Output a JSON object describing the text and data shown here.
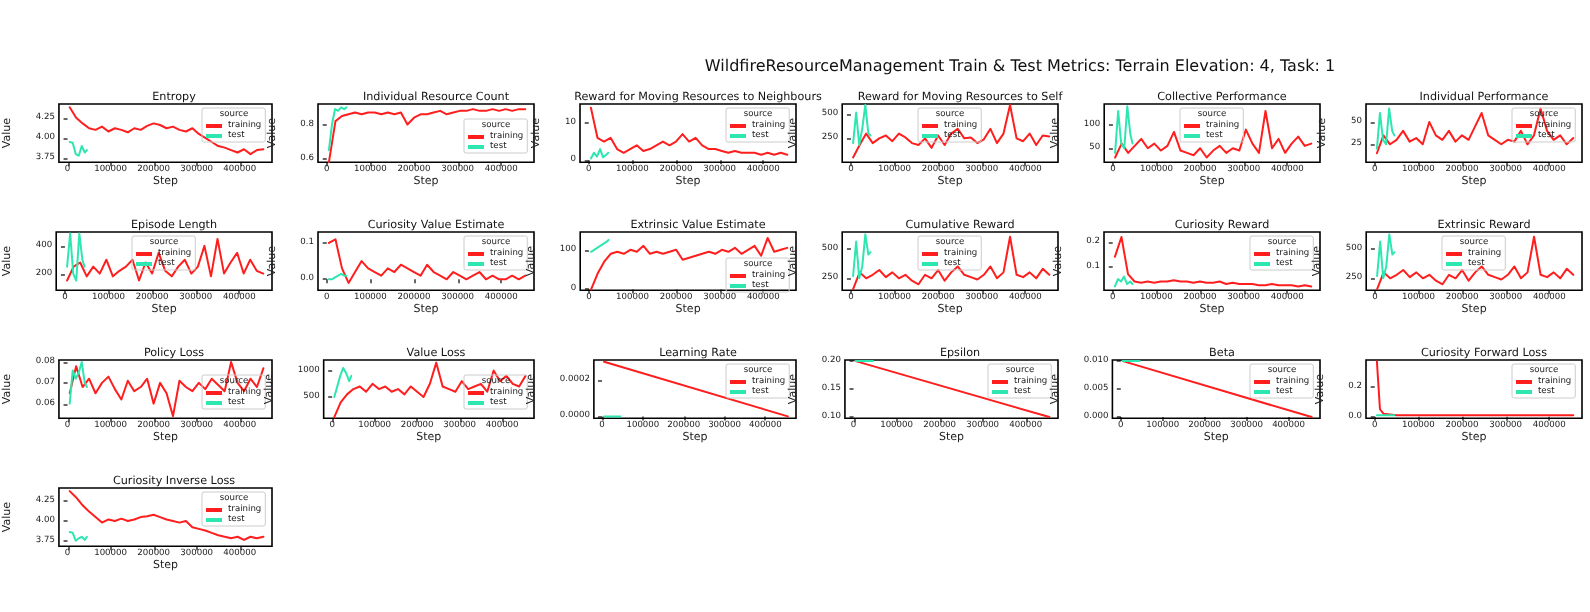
{
  "chart_data": [
    {
      "type": "other",
      "title": "WildfireResourceManagement Train & Test Metrics: Terrain Elevation: 4, Task: 1"
    },
    {
      "type": "line",
      "title": "Entropy",
      "xlabel": "Step",
      "ylabel": "Value",
      "legend_title": "source",
      "legend": "top right",
      "xlim": [
        -20000,
        475000
      ],
      "xticks": [
        0,
        100000,
        200000,
        300000,
        400000
      ],
      "ylim": [
        3.7,
        4.42
      ],
      "yticks": [
        {
          "value": 3.75,
          "label": "3.75"
        },
        {
          "value": 4,
          "label": "4.00"
        },
        {
          "value": 4.25,
          "label": "4.25"
        }
      ],
      "x": [
        5000,
        20000,
        35000,
        50000,
        65000,
        80000,
        95000,
        110000,
        125000,
        140000,
        155000,
        170000,
        185000,
        200000,
        215000,
        230000,
        245000,
        260000,
        275000,
        290000,
        305000,
        320000,
        335000,
        350000,
        365000,
        380000,
        395000,
        410000,
        425000,
        440000,
        455000
      ],
      "series": [
        {
          "name": "training",
          "color": "#ff1e1e",
          "values": [
            4.38,
            4.25,
            4.18,
            4.12,
            4.1,
            4.14,
            4.08,
            4.12,
            4.1,
            4.07,
            4.12,
            4.1,
            4.15,
            4.18,
            4.16,
            4.12,
            4.14,
            4.1,
            4.08,
            4.12,
            4.05,
            4.0,
            3.95,
            3.9,
            3.88,
            3.85,
            3.82,
            3.86,
            3.8,
            3.85,
            3.86
          ]
        },
        {
          "name": "test",
          "color": "#2de6b0",
          "x": [
            5000,
            12000,
            19000,
            26000,
            33000,
            40000,
            45000
          ],
          "values": [
            3.95,
            3.94,
            3.8,
            3.78,
            3.9,
            3.82,
            3.85
          ]
        }
      ]
    },
    {
      "type": "line",
      "title": "Individual Resource Count",
      "xlabel": "Step",
      "ylabel": "Value",
      "legend_title": "source",
      "legend": "center right",
      "xlim": [
        -20000,
        475000
      ],
      "xticks": [
        0,
        100000,
        200000,
        300000,
        400000
      ],
      "ylim": [
        0.58,
        0.92
      ],
      "yticks": [
        0.6,
        0.8
      ],
      "x": [
        5000,
        20000,
        35000,
        50000,
        65000,
        80000,
        95000,
        110000,
        125000,
        140000,
        155000,
        170000,
        185000,
        200000,
        215000,
        230000,
        245000,
        260000,
        275000,
        290000,
        305000,
        320000,
        335000,
        350000,
        365000,
        380000,
        395000,
        410000,
        425000,
        440000,
        455000
      ],
      "series": [
        {
          "name": "training",
          "color": "#ff1e1e",
          "values": [
            0.58,
            0.82,
            0.85,
            0.86,
            0.87,
            0.86,
            0.87,
            0.87,
            0.86,
            0.87,
            0.86,
            0.87,
            0.8,
            0.84,
            0.86,
            0.86,
            0.87,
            0.88,
            0.86,
            0.87,
            0.88,
            0.88,
            0.89,
            0.88,
            0.88,
            0.89,
            0.88,
            0.89,
            0.88,
            0.89,
            0.89
          ]
        },
        {
          "name": "test",
          "color": "#2de6b0",
          "x": [
            5000,
            12000,
            19000,
            26000,
            33000,
            40000,
            45000
          ],
          "values": [
            0.65,
            0.8,
            0.89,
            0.88,
            0.9,
            0.89,
            0.9
          ]
        }
      ]
    },
    {
      "type": "line",
      "title": "Reward for Moving Resources to Neighbours",
      "xlabel": "Step",
      "ylabel": "Value",
      "legend_title": "source",
      "legend": "top right",
      "xlim": [
        -20000,
        475000
      ],
      "xticks": [
        0,
        100000,
        200000,
        300000,
        400000
      ],
      "ylim": [
        -0.5,
        15
      ],
      "yticks": [
        0,
        10
      ],
      "x": [
        5000,
        20000,
        35000,
        50000,
        65000,
        80000,
        95000,
        110000,
        125000,
        140000,
        155000,
        170000,
        185000,
        200000,
        215000,
        230000,
        245000,
        260000,
        275000,
        290000,
        305000,
        320000,
        335000,
        350000,
        365000,
        380000,
        395000,
        410000,
        425000,
        440000,
        455000
      ],
      "series": [
        {
          "name": "training",
          "color": "#ff1e1e",
          "values": [
            14,
            6,
            5,
            6,
            3,
            2,
            3,
            4,
            2.5,
            3,
            4,
            5,
            4,
            5,
            7,
            5,
            6,
            4,
            3,
            3,
            2.5,
            2,
            2.5,
            2,
            2,
            2,
            1.5,
            2,
            1.5,
            2,
            1.5
          ]
        },
        {
          "name": "test",
          "color": "#2de6b0",
          "x": [
            5000,
            12000,
            19000,
            26000,
            33000,
            40000,
            45000
          ],
          "values": [
            0.5,
            2,
            1,
            3,
            0.8,
            1.5,
            2
          ]
        }
      ]
    },
    {
      "type": "line",
      "title": "Reward for Moving Resources to Self",
      "xlabel": "Step",
      "ylabel": "Value",
      "legend_title": "source",
      "legend": "top",
      "xlim": [
        -20000,
        475000
      ],
      "xticks": [
        0,
        100000,
        200000,
        300000,
        400000
      ],
      "ylim": [
        0,
        610
      ],
      "yticks": [
        250,
        500
      ],
      "x": [
        5000,
        20000,
        35000,
        50000,
        65000,
        80000,
        95000,
        110000,
        125000,
        140000,
        155000,
        170000,
        185000,
        200000,
        215000,
        230000,
        245000,
        260000,
        275000,
        290000,
        305000,
        320000,
        335000,
        350000,
        365000,
        380000,
        395000,
        410000,
        425000,
        440000,
        455000
      ],
      "series": [
        {
          "name": "training",
          "color": "#ff1e1e",
          "values": [
            50,
            180,
            300,
            200,
            250,
            280,
            220,
            300,
            260,
            200,
            180,
            250,
            150,
            280,
            180,
            300,
            350,
            250,
            260,
            200,
            240,
            350,
            200,
            300,
            600,
            250,
            220,
            300,
            180,
            280,
            270
          ]
        },
        {
          "name": "test",
          "color": "#2de6b0",
          "x": [
            5000,
            12000,
            19000,
            26000,
            33000,
            40000,
            45000
          ],
          "values": [
            200,
            520,
            180,
            350,
            600,
            300,
            280
          ]
        }
      ]
    },
    {
      "type": "line",
      "title": "Collective Performance",
      "xlabel": "Step",
      "ylabel": "Value",
      "legend_title": "source",
      "legend": "top",
      "xlim": [
        -20000,
        475000
      ],
      "xticks": [
        0,
        100000,
        200000,
        300000,
        400000
      ],
      "ylim": [
        20,
        145
      ],
      "yticks": [
        50,
        100
      ],
      "x": [
        5000,
        20000,
        35000,
        50000,
        65000,
        80000,
        95000,
        110000,
        125000,
        140000,
        155000,
        170000,
        185000,
        200000,
        215000,
        230000,
        245000,
        260000,
        275000,
        290000,
        305000,
        320000,
        335000,
        350000,
        365000,
        380000,
        395000,
        410000,
        425000,
        440000,
        455000
      ],
      "series": [
        {
          "name": "training",
          "color": "#ff1e1e",
          "values": [
            30,
            60,
            40,
            55,
            70,
            50,
            60,
            45,
            55,
            85,
            45,
            40,
            35,
            50,
            30,
            45,
            55,
            40,
            50,
            45,
            90,
            60,
            40,
            130,
            50,
            70,
            40,
            60,
            75,
            55,
            60
          ]
        },
        {
          "name": "test",
          "color": "#2de6b0",
          "x": [
            5000,
            12000,
            19000,
            26000,
            33000,
            40000,
            45000
          ],
          "values": [
            40,
            130,
            60,
            50,
            140,
            80,
            60
          ]
        }
      ]
    },
    {
      "type": "line",
      "title": "Individual Performance",
      "xlabel": "Step",
      "ylabel": "Value",
      "legend_title": "source",
      "legend": "top right",
      "xlim": [
        -20000,
        475000
      ],
      "xticks": [
        0,
        100000,
        200000,
        300000,
        400000
      ],
      "ylim": [
        5,
        70
      ],
      "yticks": [
        25,
        50
      ],
      "x": [
        5000,
        20000,
        35000,
        50000,
        65000,
        80000,
        95000,
        110000,
        125000,
        140000,
        155000,
        170000,
        185000,
        200000,
        215000,
        230000,
        245000,
        260000,
        275000,
        290000,
        305000,
        320000,
        335000,
        350000,
        365000,
        380000,
        395000,
        410000,
        425000,
        440000,
        455000
      ],
      "series": [
        {
          "name": "training",
          "color": "#ff1e1e",
          "values": [
            15,
            35,
            25,
            30,
            40,
            28,
            32,
            25,
            50,
            35,
            30,
            40,
            28,
            35,
            30,
            45,
            60,
            35,
            30,
            25,
            30,
            28,
            40,
            25,
            35,
            65,
            40,
            30,
            35,
            25,
            32
          ]
        },
        {
          "name": "test",
          "color": "#2de6b0",
          "x": [
            5000,
            12000,
            19000,
            26000,
            33000,
            40000,
            45000
          ],
          "values": [
            20,
            60,
            30,
            25,
            65,
            40,
            35
          ]
        }
      ]
    },
    {
      "type": "line",
      "title": "Episode Length",
      "xlabel": "Step",
      "ylabel": "Value",
      "legend_title": "source",
      "legend": "top",
      "xlim": [
        -20000,
        475000
      ],
      "xticks": [
        0,
        100000,
        200000,
        300000,
        400000
      ],
      "ylim": [
        80,
        500
      ],
      "yticks": [
        200,
        400
      ],
      "x": [
        5000,
        20000,
        35000,
        50000,
        65000,
        80000,
        95000,
        110000,
        125000,
        140000,
        155000,
        170000,
        185000,
        200000,
        215000,
        230000,
        245000,
        260000,
        275000,
        290000,
        305000,
        320000,
        335000,
        350000,
        365000,
        380000,
        395000,
        410000,
        425000,
        440000,
        455000
      ],
      "series": [
        {
          "name": "training",
          "color": "#ff1e1e",
          "values": [
            150,
            250,
            280,
            180,
            250,
            200,
            300,
            180,
            220,
            250,
            300,
            150,
            280,
            200,
            350,
            220,
            180,
            250,
            300,
            200,
            250,
            400,
            180,
            450,
            200,
            280,
            350,
            200,
            300,
            220,
            200
          ]
        },
        {
          "name": "test",
          "color": "#2de6b0",
          "x": [
            5000,
            12000,
            19000,
            26000,
            33000,
            40000,
            45000
          ],
          "values": [
            250,
            490,
            200,
            150,
            490,
            300,
            250
          ]
        }
      ]
    },
    {
      "type": "line",
      "title": "Curiosity Value Estimate",
      "xlabel": "Step",
      "ylabel": "Value",
      "legend_title": "source",
      "legend": "top right",
      "xlim": [
        -20000,
        475000
      ],
      "xticks": [
        0,
        100000,
        200000,
        300000,
        400000
      ],
      "ylim": [
        -0.03,
        0.13
      ],
      "yticks": [
        {
          "value": 0,
          "label": "0.0"
        },
        {
          "value": 0.1,
          "label": "0.1"
        }
      ],
      "x": [
        5000,
        20000,
        35000,
        50000,
        65000,
        80000,
        95000,
        110000,
        125000,
        140000,
        155000,
        170000,
        185000,
        200000,
        215000,
        230000,
        245000,
        260000,
        275000,
        290000,
        305000,
        320000,
        335000,
        350000,
        365000,
        380000,
        395000,
        410000,
        425000,
        440000,
        455000
      ],
      "series": [
        {
          "name": "training",
          "color": "#ff1e1e",
          "values": [
            0.1,
            0.11,
            0.03,
            -0.01,
            0.02,
            0.05,
            0.03,
            0.02,
            0.01,
            0.03,
            0.02,
            0.04,
            0.03,
            0.02,
            0.01,
            0.04,
            0.02,
            0.01,
            0.0,
            0.02,
            0.01,
            0.0,
            0.01,
            0.02,
            0.0,
            0.01,
            0.0,
            0.0,
            0.01,
            0.0,
            0.01
          ]
        },
        {
          "name": "test",
          "color": "#2de6b0",
          "x": [
            5000,
            12000,
            19000,
            26000,
            33000,
            40000,
            45000
          ],
          "values": [
            0.0,
            0.0,
            0.005,
            0.01,
            0.015,
            0.01,
            0.01
          ]
        }
      ]
    },
    {
      "type": "line",
      "title": "Extrinsic Value Estimate",
      "xlabel": "Step",
      "ylabel": "Value",
      "legend_title": "source",
      "legend": "bottom right",
      "xlim": [
        -20000,
        475000
      ],
      "xticks": [
        0,
        100000,
        200000,
        300000,
        400000
      ],
      "ylim": [
        -2,
        145
      ],
      "yticks": [
        0,
        100
      ],
      "x": [
        5000,
        20000,
        35000,
        50000,
        65000,
        80000,
        95000,
        110000,
        125000,
        140000,
        155000,
        170000,
        185000,
        200000,
        215000,
        230000,
        245000,
        260000,
        275000,
        290000,
        305000,
        320000,
        335000,
        350000,
        365000,
        380000,
        395000,
        410000,
        425000,
        440000,
        455000
      ],
      "series": [
        {
          "name": "training",
          "color": "#ff1e1e",
          "values": [
            0,
            40,
            70,
            90,
            95,
            90,
            100,
            95,
            110,
            90,
            95,
            90,
            95,
            100,
            75,
            80,
            85,
            90,
            95,
            90,
            100,
            95,
            105,
            90,
            100,
            110,
            85,
            130,
            95,
            100,
            105
          ]
        },
        {
          "name": "test",
          "color": "#2de6b0",
          "x": [
            5000,
            12000,
            19000,
            26000,
            33000,
            40000,
            45000
          ],
          "values": [
            95,
            100,
            105,
            110,
            115,
            120,
            125
          ]
        }
      ]
    },
    {
      "type": "line",
      "title": "Cumulative Reward",
      "xlabel": "Step",
      "ylabel": "Value",
      "legend_title": "source",
      "legend": "top",
      "xlim": [
        -20000,
        475000
      ],
      "xticks": [
        0,
        100000,
        200000,
        300000,
        400000
      ],
      "ylim": [
        150,
        640
      ],
      "yticks": [
        250,
        500
      ],
      "x": [
        5000,
        20000,
        35000,
        50000,
        65000,
        80000,
        95000,
        110000,
        125000,
        140000,
        155000,
        170000,
        185000,
        200000,
        215000,
        230000,
        245000,
        260000,
        275000,
        290000,
        305000,
        320000,
        335000,
        350000,
        365000,
        380000,
        395000,
        410000,
        425000,
        440000,
        455000
      ],
      "series": [
        {
          "name": "training",
          "color": "#ff1e1e",
          "values": [
            160,
            300,
            250,
            280,
            320,
            260,
            300,
            250,
            280,
            230,
            200,
            280,
            250,
            320,
            230,
            300,
            350,
            280,
            260,
            240,
            280,
            350,
            250,
            300,
            600,
            280,
            260,
            300,
            250,
            330,
            280
          ]
        },
        {
          "name": "test",
          "color": "#2de6b0",
          "x": [
            5000,
            12000,
            19000,
            26000,
            33000,
            40000,
            45000
          ],
          "values": [
            270,
            560,
            250,
            350,
            620,
            450,
            470
          ]
        }
      ]
    },
    {
      "type": "line",
      "title": "Curiosity Reward",
      "xlabel": "Step",
      "ylabel": "Value",
      "legend_title": "source",
      "legend": "top right",
      "xlim": [
        -20000,
        475000
      ],
      "xticks": [
        0,
        100000,
        200000,
        300000,
        400000
      ],
      "ylim": [
        0.005,
        0.24
      ],
      "yticks": [
        0.1,
        0.2
      ],
      "x": [
        5000,
        20000,
        35000,
        50000,
        65000,
        80000,
        95000,
        110000,
        125000,
        140000,
        155000,
        170000,
        185000,
        200000,
        215000,
        230000,
        245000,
        260000,
        275000,
        290000,
        305000,
        320000,
        335000,
        350000,
        365000,
        380000,
        395000,
        410000,
        425000,
        440000,
        455000
      ],
      "series": [
        {
          "name": "training",
          "color": "#ff1e1e",
          "values": [
            0.14,
            0.22,
            0.07,
            0.04,
            0.035,
            0.04,
            0.035,
            0.04,
            0.04,
            0.045,
            0.04,
            0.04,
            0.035,
            0.04,
            0.035,
            0.035,
            0.04,
            0.03,
            0.035,
            0.03,
            0.03,
            0.03,
            0.025,
            0.025,
            0.03,
            0.025,
            0.025,
            0.025,
            0.02,
            0.025,
            0.02
          ]
        },
        {
          "name": "test",
          "color": "#2de6b0",
          "x": [
            5000,
            12000,
            19000,
            26000,
            33000,
            40000,
            45000
          ],
          "values": [
            0.02,
            0.05,
            0.04,
            0.06,
            0.03,
            0.04,
            0.03
          ]
        }
      ]
    },
    {
      "type": "line",
      "title": "Extrinsic Reward",
      "xlabel": "Step",
      "ylabel": "Value",
      "legend_title": "source",
      "legend": "top",
      "xlim": [
        -20000,
        475000
      ],
      "xticks": [
        0,
        100000,
        200000,
        300000,
        400000
      ],
      "ylim": [
        150,
        640
      ],
      "yticks": [
        250,
        500
      ],
      "x": [
        5000,
        20000,
        35000,
        50000,
        65000,
        80000,
        95000,
        110000,
        125000,
        140000,
        155000,
        170000,
        185000,
        200000,
        215000,
        230000,
        245000,
        260000,
        275000,
        290000,
        305000,
        320000,
        335000,
        350000,
        365000,
        380000,
        395000,
        410000,
        425000,
        440000,
        455000
      ],
      "series": [
        {
          "name": "training",
          "color": "#ff1e1e",
          "values": [
            160,
            300,
            250,
            280,
            320,
            260,
            300,
            250,
            280,
            230,
            200,
            280,
            250,
            320,
            230,
            300,
            350,
            280,
            260,
            240,
            280,
            350,
            250,
            300,
            600,
            280,
            260,
            300,
            250,
            330,
            280
          ]
        },
        {
          "name": "test",
          "color": "#2de6b0",
          "x": [
            5000,
            12000,
            19000,
            26000,
            33000,
            40000,
            45000
          ],
          "values": [
            270,
            560,
            250,
            350,
            620,
            450,
            470
          ]
        }
      ]
    },
    {
      "type": "line",
      "title": "Policy Loss",
      "xlabel": "Step",
      "ylabel": "Value",
      "legend_title": "source",
      "legend": "center right",
      "xlim": [
        -20000,
        475000
      ],
      "xticks": [
        0,
        100000,
        200000,
        300000,
        400000
      ],
      "ylim": [
        0.053,
        0.081
      ],
      "yticks": [
        0.06,
        0.07,
        0.08
      ],
      "x": [
        5000,
        20000,
        35000,
        50000,
        65000,
        80000,
        95000,
        110000,
        125000,
        140000,
        155000,
        170000,
        185000,
        200000,
        215000,
        230000,
        245000,
        260000,
        275000,
        290000,
        305000,
        320000,
        335000,
        350000,
        365000,
        380000,
        395000,
        410000,
        425000,
        440000,
        455000
      ],
      "series": [
        {
          "name": "training",
          "color": "#ff1e1e",
          "values": [
            0.065,
            0.078,
            0.068,
            0.072,
            0.065,
            0.07,
            0.073,
            0.067,
            0.062,
            0.071,
            0.066,
            0.068,
            0.072,
            0.06,
            0.07,
            0.065,
            0.054,
            0.071,
            0.068,
            0.066,
            0.07,
            0.067,
            0.072,
            0.069,
            0.066,
            0.08,
            0.07,
            0.066,
            0.072,
            0.068,
            0.077
          ]
        },
        {
          "name": "test",
          "color": "#2de6b0",
          "x": [
            5000,
            12000,
            19000,
            26000,
            33000,
            40000,
            45000
          ],
          "values": [
            0.06,
            0.076,
            0.072,
            0.075,
            0.08,
            0.07,
            0.068
          ]
        }
      ]
    },
    {
      "type": "line",
      "title": "Value Loss",
      "xlabel": "Step",
      "ylabel": "Value",
      "legend_title": "source",
      "legend": "center right",
      "xlim": [
        -20000,
        475000
      ],
      "xticks": [
        0,
        100000,
        200000,
        300000,
        400000
      ],
      "ylim": [
        100,
        1200
      ],
      "yticks": [
        500,
        1000
      ],
      "x": [
        5000,
        20000,
        35000,
        50000,
        65000,
        80000,
        95000,
        110000,
        125000,
        140000,
        155000,
        170000,
        185000,
        200000,
        215000,
        230000,
        245000,
        260000,
        275000,
        290000,
        305000,
        320000,
        335000,
        350000,
        365000,
        380000,
        395000,
        410000,
        425000,
        440000,
        455000
      ],
      "series": [
        {
          "name": "training",
          "color": "#ff1e1e",
          "values": [
            120,
            400,
            550,
            650,
            700,
            600,
            750,
            650,
            700,
            600,
            650,
            550,
            700,
            600,
            500,
            750,
            1150,
            700,
            650,
            600,
            800,
            650,
            700,
            750,
            600,
            1000,
            800,
            900,
            750,
            700,
            900
          ]
        },
        {
          "name": "test",
          "color": "#2de6b0",
          "x": [
            5000,
            12000,
            19000,
            26000,
            33000,
            40000,
            45000
          ],
          "values": [
            500,
            700,
            900,
            1050,
            950,
            800,
            900
          ]
        }
      ]
    },
    {
      "type": "line",
      "title": "Learning Rate",
      "xlabel": "Step",
      "ylabel": "Value",
      "legend_title": "source",
      "legend": "top right",
      "xlim": [
        -20000,
        475000
      ],
      "xticks": [
        0,
        100000,
        200000,
        300000,
        400000
      ],
      "ylim": [
        -1e-05,
        0.00031
      ],
      "yticks": [
        {
          "value": 0,
          "label": "0.0000"
        },
        {
          "value": 0.0002,
          "label": "0.0002"
        }
      ],
      "series": [
        {
          "name": "training",
          "color": "#ff1e1e",
          "x": [
            5000,
            455000
          ],
          "values": [
            0.0003,
            0
          ]
        },
        {
          "name": "test",
          "color": "#2de6b0",
          "x": [
            5000,
            45000
          ],
          "values": [
            0,
            0
          ]
        }
      ]
    },
    {
      "type": "line",
      "title": "Epsilon",
      "xlabel": "Step",
      "ylabel": "Value",
      "legend_title": "source",
      "legend": "top right",
      "xlim": [
        -20000,
        475000
      ],
      "xticks": [
        0,
        100000,
        200000,
        300000,
        400000
      ],
      "ylim": [
        0.098,
        0.202
      ],
      "yticks": [
        {
          "value": 0.1,
          "label": "0.10"
        },
        {
          "value": 0.15,
          "label": "0.15"
        },
        {
          "value": 0.2,
          "label": "0.20"
        }
      ],
      "series": [
        {
          "name": "training",
          "color": "#ff1e1e",
          "x": [
            5000,
            455000
          ],
          "values": [
            0.2,
            0.1
          ]
        },
        {
          "name": "test",
          "color": "#2de6b0",
          "x": [
            5000,
            45000
          ],
          "values": [
            0.2,
            0.2
          ]
        }
      ]
    },
    {
      "type": "line",
      "title": "Beta",
      "xlabel": "Step",
      "ylabel": "Value",
      "legend_title": "source",
      "legend": "top right",
      "xlim": [
        -20000,
        475000
      ],
      "xticks": [
        0,
        100000,
        200000,
        300000,
        400000
      ],
      "ylim": [
        -0.0002,
        0.0102
      ],
      "yticks": [
        {
          "value": 0,
          "label": "0.000"
        },
        {
          "value": 0.005,
          "label": "0.005"
        },
        {
          "value": 0.01,
          "label": "0.010"
        }
      ],
      "series": [
        {
          "name": "training",
          "color": "#ff1e1e",
          "x": [
            5000,
            455000
          ],
          "values": [
            0.01,
            0
          ]
        },
        {
          "name": "test",
          "color": "#2de6b0",
          "x": [
            5000,
            45000
          ],
          "values": [
            0.01,
            0.01
          ]
        }
      ]
    },
    {
      "type": "line",
      "title": "Curiosity Forward Loss",
      "xlabel": "Step",
      "ylabel": "Value",
      "legend_title": "source",
      "legend": "top right",
      "xlim": [
        -20000,
        475000
      ],
      "xticks": [
        0,
        100000,
        200000,
        300000,
        400000
      ],
      "ylim": [
        -0.01,
        0.38
      ],
      "yticks": [
        {
          "value": 0,
          "label": "0.0"
        },
        {
          "value": 0.2,
          "label": "0.2"
        }
      ],
      "series": [
        {
          "name": "training",
          "color": "#ff1e1e",
          "x": [
            5000,
            12000,
            20000,
            50000,
            100000,
            200000,
            300000,
            455000
          ],
          "values": [
            0.37,
            0.05,
            0.02,
            0.01,
            0.01,
            0.01,
            0.01,
            0.01
          ]
        },
        {
          "name": "test",
          "color": "#2de6b0",
          "x": [
            5000,
            45000
          ],
          "values": [
            0.01,
            0.01
          ]
        }
      ]
    },
    {
      "type": "line",
      "title": "Curiosity Inverse Loss",
      "xlabel": "Step",
      "ylabel": "Value",
      "legend_title": "source",
      "legend": "top right",
      "xlim": [
        -20000,
        475000
      ],
      "xticks": [
        0,
        100000,
        200000,
        300000,
        400000
      ],
      "ylim": [
        3.68,
        4.42
      ],
      "yticks": [
        {
          "value": 3.75,
          "label": "3.75"
        },
        {
          "value": 4,
          "label": "4.00"
        },
        {
          "value": 4.25,
          "label": "4.25"
        }
      ],
      "x": [
        5000,
        20000,
        35000,
        50000,
        65000,
        80000,
        95000,
        110000,
        125000,
        140000,
        155000,
        170000,
        185000,
        200000,
        215000,
        230000,
        245000,
        260000,
        275000,
        290000,
        305000,
        320000,
        335000,
        350000,
        365000,
        380000,
        395000,
        410000,
        425000,
        440000,
        455000
      ],
      "series": [
        {
          "name": "training",
          "color": "#ff1e1e",
          "values": [
            4.38,
            4.3,
            4.2,
            4.12,
            4.05,
            3.98,
            4.02,
            4.0,
            4.03,
            4.0,
            4.02,
            4.05,
            4.06,
            4.08,
            4.05,
            4.02,
            4.0,
            3.98,
            4.0,
            3.92,
            3.9,
            3.88,
            3.85,
            3.82,
            3.8,
            3.78,
            3.8,
            3.76,
            3.8,
            3.78,
            3.8
          ]
        },
        {
          "name": "test",
          "color": "#2de6b0",
          "x": [
            5000,
            12000,
            19000,
            26000,
            33000,
            40000,
            45000
          ],
          "values": [
            3.86,
            3.85,
            3.75,
            3.78,
            3.8,
            3.76,
            3.8
          ]
        }
      ]
    }
  ]
}
